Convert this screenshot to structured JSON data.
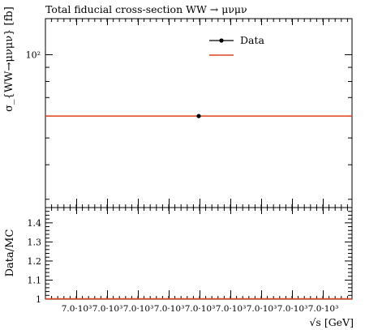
{
  "chart_data": [
    {
      "type": "scatter",
      "panel": "main",
      "title": "Total fiducial cross-section WW → μνμν",
      "ylabel": "σ_{WW→μνμν} [fb]",
      "yscale": "log",
      "ylim": [
        28,
        135
      ],
      "yticks": [
        {
          "value": 100,
          "label": "10²"
        }
      ],
      "legend": {
        "placement": "top-right",
        "entries": [
          "Data",
          ""
        ]
      },
      "series": [
        {
          "name": "Data",
          "kind": "points",
          "color": "#000000",
          "x": [
            7000
          ],
          "y": [
            60
          ]
        },
        {
          "name": "",
          "kind": "hline",
          "color": "#e0401c",
          "y": 60
        }
      ]
    },
    {
      "type": "line",
      "panel": "ratio",
      "ylabel": "Data/MC",
      "xlabel": "√s [GeV]",
      "ylim": [
        1.0,
        1.48
      ],
      "yticks": [
        1,
        1.1,
        1.2,
        1.3,
        1.4
      ],
      "xticklabels": [
        "7.0·10³",
        "7.0·10³",
        "7.0·10³",
        "7.0·10³",
        "7.0·10³",
        "7.0·10³",
        "7.0·10³",
        "7.0·10³",
        "7.0·10³"
      ],
      "series": [
        {
          "name": "",
          "kind": "hline",
          "color": "#e0401c",
          "y": 1.0
        }
      ]
    }
  ]
}
